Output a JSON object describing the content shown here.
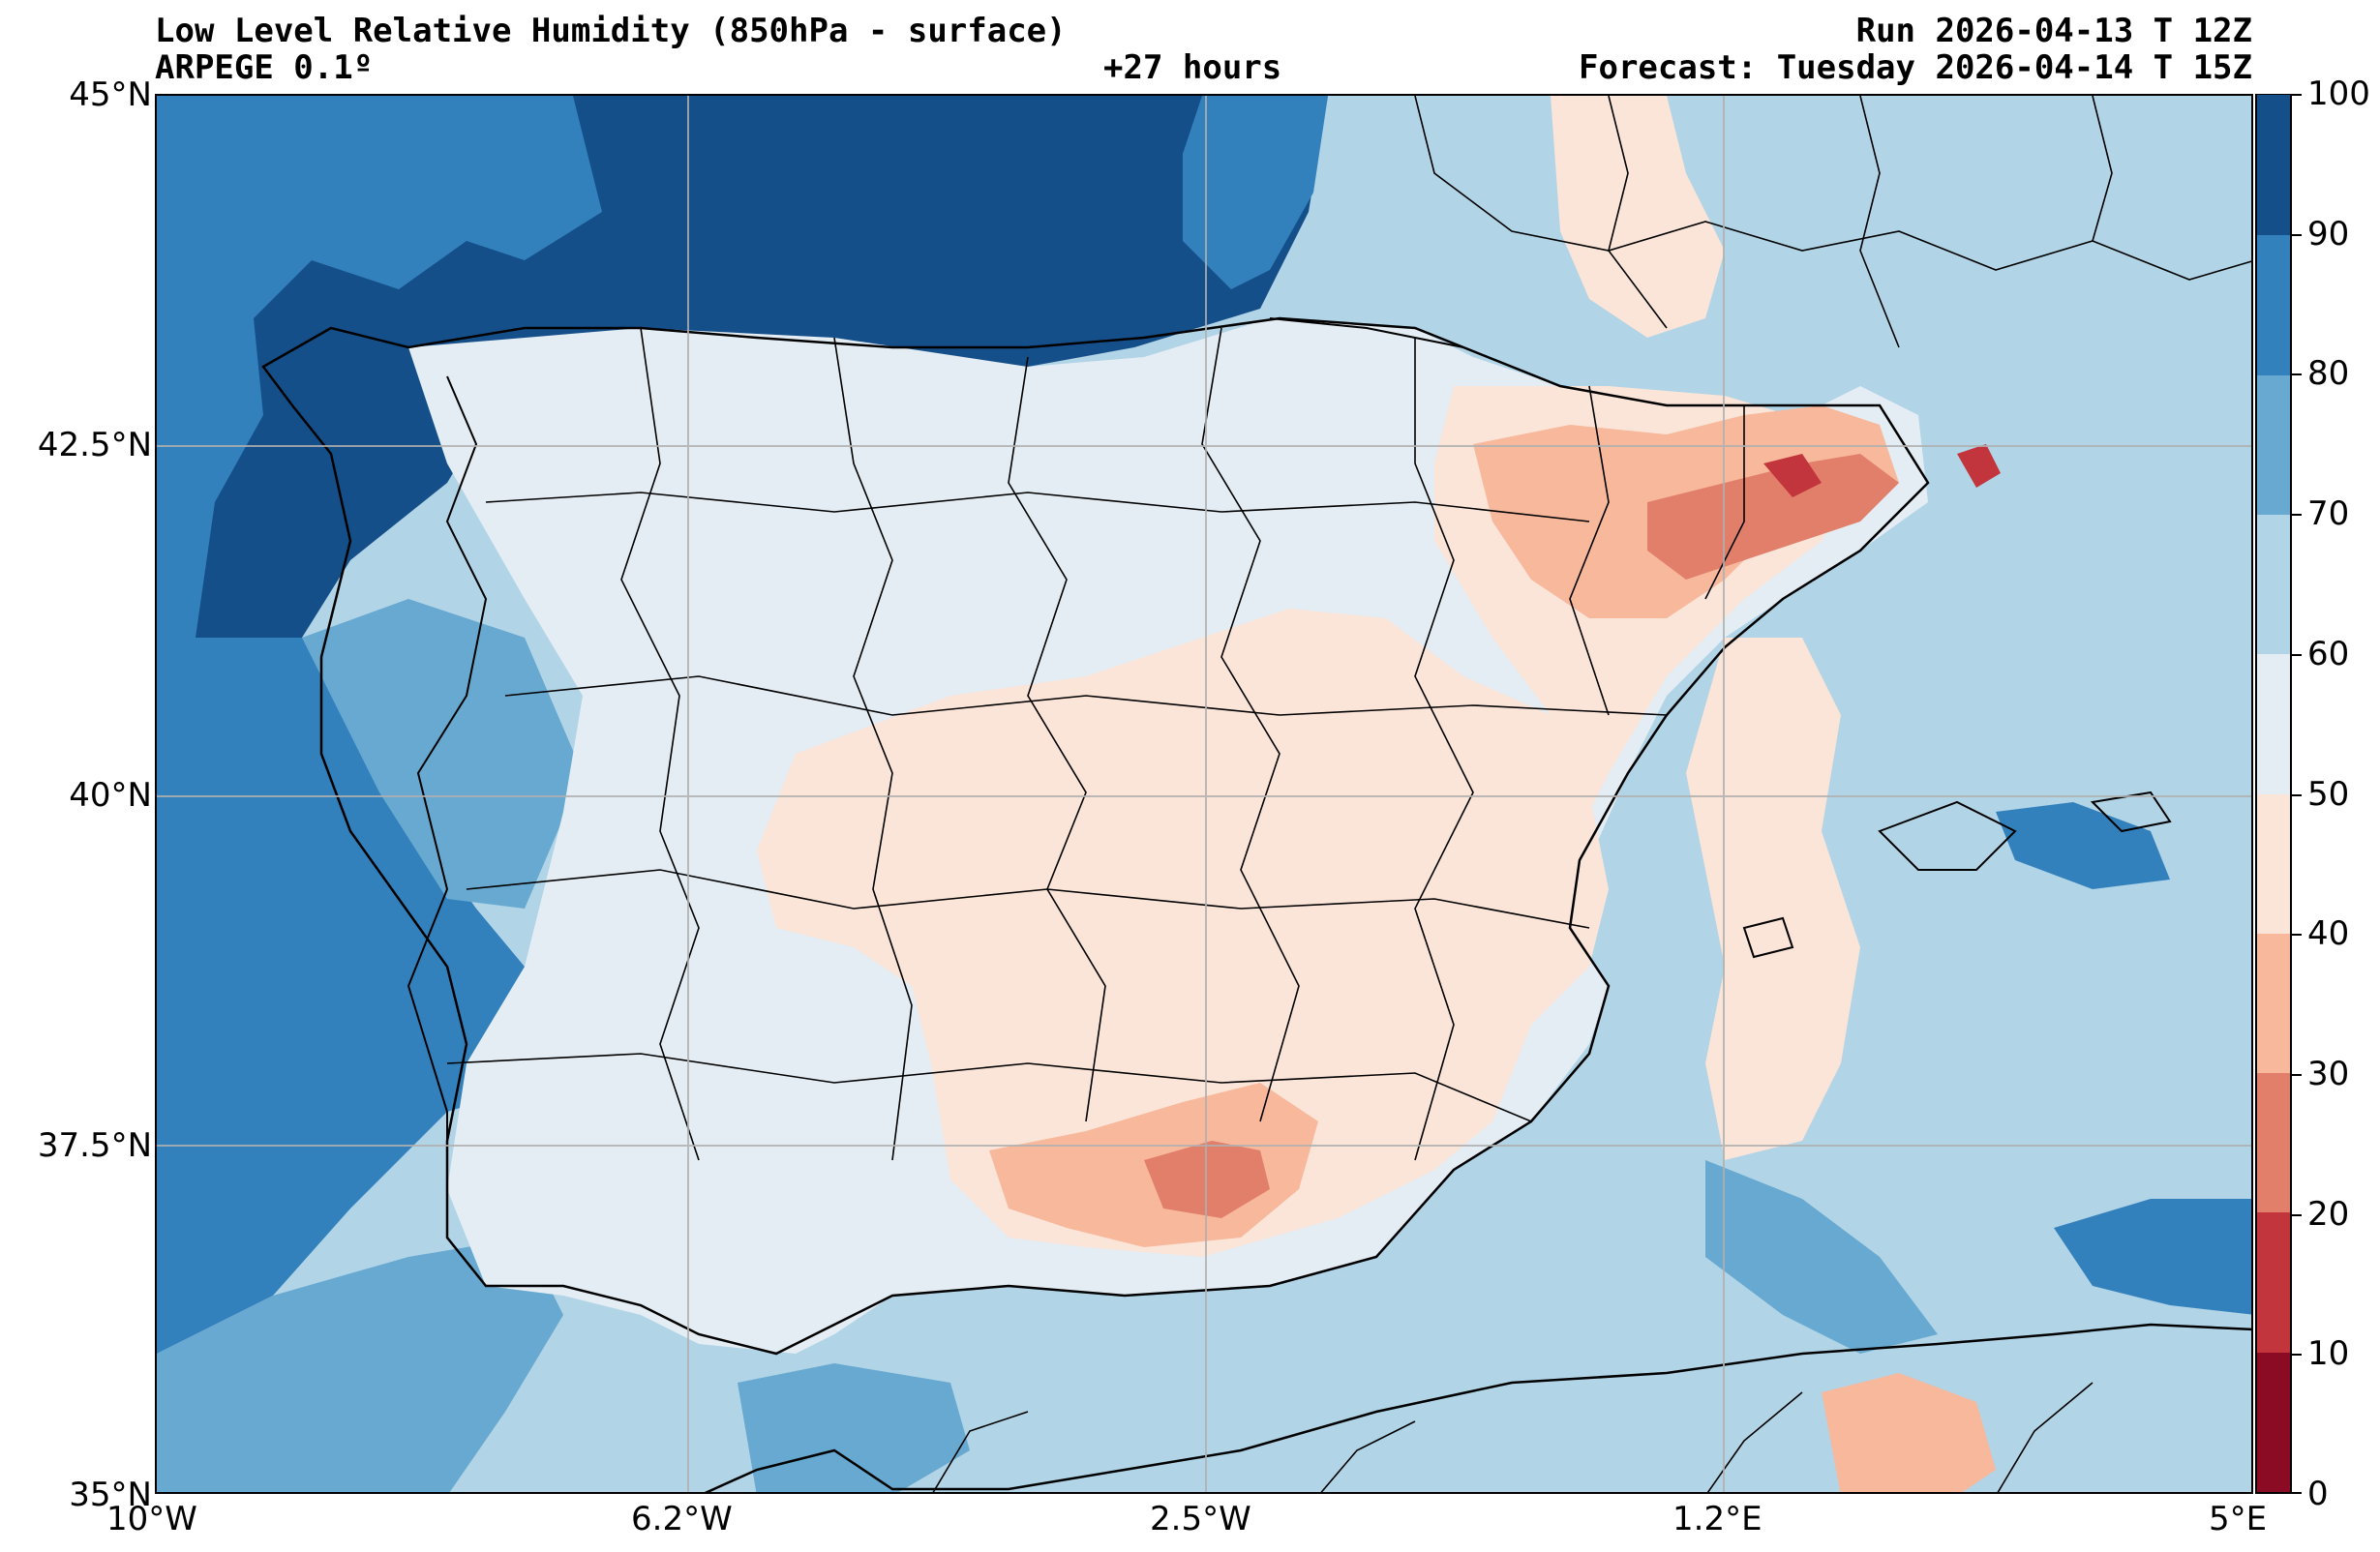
{
  "header": {
    "title": "Low Level Relative Humidity (850hPa - surface)",
    "model": "ARPEGE 0.1º",
    "lead_time": "+27 hours",
    "run": "Run 2026-04-13 T 12Z",
    "forecast": "Forecast: Tuesday 2026-04-14 T 15Z"
  },
  "axes": {
    "lat_labels": [
      "45°N",
      "42.5°N",
      "40°N",
      "37.5°N",
      "35°N"
    ],
    "lon_labels": [
      "10°W",
      "6.2°W",
      "2.5°W",
      "1.2°E",
      "5°E"
    ],
    "lat_range": [
      35,
      45
    ],
    "lon_range": [
      -10,
      5
    ],
    "grid": true
  },
  "colorbar": {
    "levels": [
      0,
      10,
      20,
      30,
      40,
      50,
      60,
      70,
      80,
      90,
      100
    ],
    "labels": [
      "100",
      "90",
      "80",
      "70",
      "60",
      "50",
      "40",
      "30",
      "20",
      "10",
      "0"
    ],
    "colors": [
      "#8b0a24",
      "#c2353c",
      "#e27f6a",
      "#f7b89c",
      "#fbe4d8",
      "#e4edf4",
      "#b1d4e7",
      "#67a9d0",
      "#3381bc",
      "#154f8a"
    ]
  },
  "map": {
    "ocean_color": "#b1d4e7",
    "land_color": "#e4edf4",
    "border_color": "#000000"
  }
}
